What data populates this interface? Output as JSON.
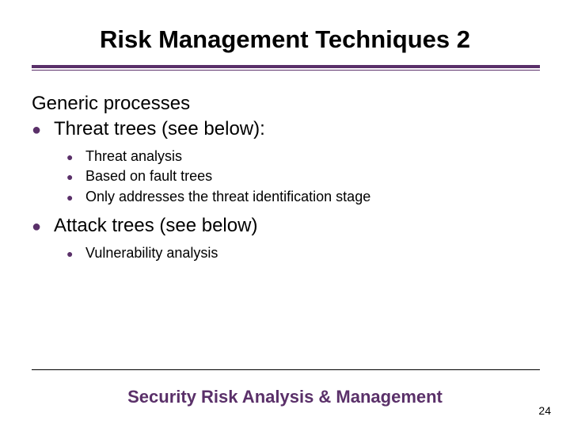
{
  "colors": {
    "accent": "#5a3069",
    "text": "#000000",
    "background": "#ffffff"
  },
  "fonts": {
    "title_size": 31,
    "body_l1_size": 24,
    "body_l2_size": 18,
    "footer_size": 22,
    "pagenum_size": 14
  },
  "title": "Risk Management Techniques 2",
  "intro": "Generic processes",
  "items": [
    {
      "label": "Threat trees (see below):",
      "sub": [
        "Threat analysis",
        "Based on fault trees",
        "Only addresses the threat identification stage"
      ]
    },
    {
      "label": "Attack trees (see below)",
      "sub": [
        "Vulnerability analysis"
      ]
    }
  ],
  "footer": "Security Risk Analysis & Management",
  "page_number": "24"
}
